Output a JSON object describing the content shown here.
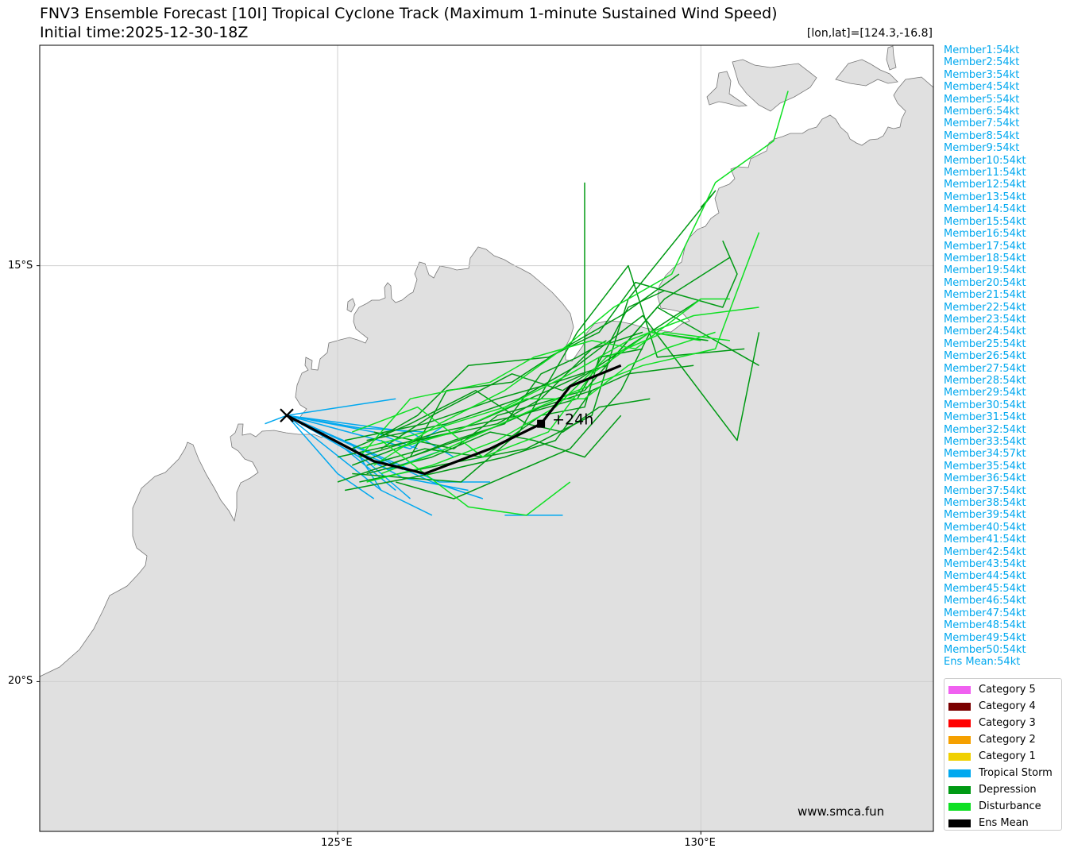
{
  "header": {
    "title": "FNV3 Ensemble Forecast [10I] Tropical Cyclone Track (Maximum 1-minute Sustained Wind Speed)",
    "subtitle": "Initial time:2025-12-30-18Z",
    "position": "[lon,lat]=[124.3,-16.8]"
  },
  "axes": {
    "lon_range": [
      120.9,
      133.2
    ],
    "lat_range": [
      -21.8,
      -12.35
    ],
    "lon_ticks": [
      {
        "value": 125,
        "label": "125°E"
      },
      {
        "value": 130,
        "label": "130°E"
      }
    ],
    "lat_ticks": [
      {
        "value": -15,
        "label": "15°S"
      },
      {
        "value": -20,
        "label": "20°S"
      }
    ],
    "grid": true
  },
  "colors": {
    "land": "#e0e0e0",
    "coast": "#777777",
    "tropical_storm": "#00a8ef",
    "depression": "#009a14",
    "disturbance": "#0fe023",
    "mean": "#000000"
  },
  "members": [
    "Member1:54kt",
    "Member2:54kt",
    "Member3:54kt",
    "Member4:54kt",
    "Member5:54kt",
    "Member6:54kt",
    "Member7:54kt",
    "Member8:54kt",
    "Member9:54kt",
    "Member10:54kt",
    "Member11:54kt",
    "Member12:54kt",
    "Member13:54kt",
    "Member14:54kt",
    "Member15:54kt",
    "Member16:54kt",
    "Member17:54kt",
    "Member18:54kt",
    "Member19:54kt",
    "Member20:54kt",
    "Member21:54kt",
    "Member22:54kt",
    "Member23:54kt",
    "Member24:54kt",
    "Member25:54kt",
    "Member26:54kt",
    "Member27:54kt",
    "Member28:54kt",
    "Member29:54kt",
    "Member30:54kt",
    "Member31:54kt",
    "Member32:54kt",
    "Member33:54kt",
    "Member34:57kt",
    "Member35:54kt",
    "Member36:54kt",
    "Member37:54kt",
    "Member38:54kt",
    "Member39:54kt",
    "Member40:54kt",
    "Member41:54kt",
    "Member42:54kt",
    "Member43:54kt",
    "Member44:54kt",
    "Member45:54kt",
    "Member46:54kt",
    "Member47:54kt",
    "Member48:54kt",
    "Member49:54kt",
    "Member50:54kt",
    "Ens Mean:54kt"
  ],
  "legend": [
    {
      "label": "Category 5",
      "color": "#f060f0"
    },
    {
      "label": "Category 4",
      "color": "#7a0000"
    },
    {
      "label": "Category 3",
      "color": "#ff0000"
    },
    {
      "label": "Category 2",
      "color": "#f5a000"
    },
    {
      "label": "Category 1",
      "color": "#f0d000"
    },
    {
      "label": "Tropical Storm",
      "color": "#00a8ef"
    },
    {
      "label": "Depression",
      "color": "#009a14"
    },
    {
      "label": "Disturbance",
      "color": "#0fe023"
    },
    {
      "label": "Ens Mean",
      "color": "#000000"
    }
  ],
  "start": {
    "lon": 124.3,
    "lat": -16.8
  },
  "mean_track": [
    {
      "lon": 124.3,
      "lat": -16.8
    },
    {
      "lon": 125.5,
      "lat": -17.35
    },
    {
      "lon": 126.2,
      "lat": -17.5
    },
    {
      "lon": 127.1,
      "lat": -17.2
    },
    {
      "lon": 127.8,
      "lat": -16.9
    },
    {
      "lon": 128.2,
      "lat": -16.45
    },
    {
      "lon": 128.9,
      "lat": -16.2
    }
  ],
  "mean_marker": {
    "lon": 127.8,
    "lat": -16.9,
    "label": "+24h"
  },
  "track_groups": [
    {
      "stage": "tropical_storm",
      "tracks": [
        [
          [
            124.3,
            -16.8
          ],
          [
            125.1,
            -17.2
          ],
          [
            125.8,
            -17.7
          ]
        ],
        [
          [
            124.3,
            -16.8
          ],
          [
            125.4,
            -17.35
          ],
          [
            126.0,
            -17.8
          ]
        ],
        [
          [
            124.3,
            -16.8
          ],
          [
            125.6,
            -17.3
          ],
          [
            126.4,
            -17.6
          ],
          [
            127.1,
            -17.6
          ]
        ],
        [
          [
            124.3,
            -16.8
          ],
          [
            125.2,
            -17.15
          ],
          [
            125.6,
            -17.7
          ]
        ],
        [
          [
            124.3,
            -16.8
          ],
          [
            124.0,
            -16.9
          ]
        ],
        [
          [
            124.3,
            -16.8
          ],
          [
            125.8,
            -16.6
          ]
        ],
        [
          [
            124.3,
            -16.8
          ],
          [
            125.5,
            -17.0
          ],
          [
            126.1,
            -17.2
          ]
        ],
        [
          [
            124.3,
            -16.8
          ],
          [
            125.7,
            -17.45
          ],
          [
            126.5,
            -17.2
          ]
        ],
        [
          [
            124.3,
            -16.8
          ],
          [
            125.0,
            -17.5
          ],
          [
            125.5,
            -17.8
          ]
        ],
        [
          [
            124.3,
            -16.8
          ],
          [
            126.0,
            -17.0
          ],
          [
            126.6,
            -17.3
          ]
        ],
        [
          [
            124.3,
            -16.8
          ],
          [
            125.3,
            -17.25
          ],
          [
            125.9,
            -17.45
          ]
        ],
        [
          [
            124.3,
            -16.8
          ],
          [
            125.9,
            -17.55
          ],
          [
            126.8,
            -17.7
          ]
        ],
        [
          [
            124.3,
            -16.8
          ],
          [
            126.3,
            -17.6
          ],
          [
            127.0,
            -17.8
          ]
        ],
        [
          [
            124.3,
            -16.8
          ],
          [
            126.0,
            -17.2
          ],
          [
            126.5,
            -16.9
          ]
        ],
        [
          [
            124.3,
            -16.8
          ],
          [
            125.6,
            -17.7
          ],
          [
            126.3,
            -18.0
          ]
        ],
        [
          [
            124.3,
            -16.8
          ],
          [
            125.3,
            -16.95
          ],
          [
            126.2,
            -17.0
          ]
        ],
        [
          [
            127.3,
            -18.0
          ],
          [
            128.1,
            -18.0
          ]
        ]
      ]
    },
    {
      "stage": "depression",
      "tracks": [
        [
          [
            125.0,
            -17.6
          ],
          [
            126.0,
            -17.3
          ],
          [
            127.0,
            -17.0
          ],
          [
            127.8,
            -16.7
          ],
          [
            128.5,
            -16.5
          ],
          [
            129.0,
            -16.3
          ],
          [
            129.9,
            -16.2
          ]
        ],
        [
          [
            125.2,
            -17.4
          ],
          [
            126.1,
            -17.1
          ],
          [
            127.2,
            -16.9
          ],
          [
            127.8,
            -16.6
          ],
          [
            128.5,
            -16.0
          ],
          [
            129.2,
            -15.8
          ]
        ],
        [
          [
            125.1,
            -17.7
          ],
          [
            126.3,
            -17.5
          ],
          [
            127.3,
            -17.3
          ],
          [
            128.0,
            -17.1
          ],
          [
            128.5,
            -16.5
          ]
        ],
        [
          [
            125.4,
            -17.1
          ],
          [
            126.5,
            -16.9
          ],
          [
            127.5,
            -16.6
          ],
          [
            128.3,
            -16.2
          ],
          [
            129.2,
            -15.6
          ],
          [
            130.5,
            -17.1
          ],
          [
            130.8,
            -15.8
          ]
        ],
        [
          [
            125.0,
            -17.3
          ],
          [
            126.6,
            -17.0
          ],
          [
            127.9,
            -16.5
          ],
          [
            128.4,
            -16.3
          ],
          [
            128.4,
            -14.0
          ]
        ],
        [
          [
            125.3,
            -17.6
          ],
          [
            126.4,
            -17.4
          ],
          [
            127.6,
            -17.2
          ],
          [
            128.5,
            -16.8
          ],
          [
            129.0,
            -15.4
          ],
          [
            130.2,
            -14.1
          ],
          [
            130.0,
            -14.3
          ]
        ],
        [
          [
            125.5,
            -17.0
          ],
          [
            126.6,
            -17.2
          ],
          [
            127.2,
            -16.8
          ],
          [
            128.4,
            -16.5
          ],
          [
            129.4,
            -15.5
          ],
          [
            130.8,
            -16.2
          ]
        ],
        [
          [
            125.2,
            -17.5
          ],
          [
            126.7,
            -17.6
          ],
          [
            127.5,
            -17.0
          ],
          [
            128.3,
            -15.8
          ],
          [
            129.0,
            -15.0
          ],
          [
            129.4,
            -16.1
          ],
          [
            130.6,
            -16.0
          ]
        ],
        [
          [
            125.6,
            -17.2
          ],
          [
            126.3,
            -16.8
          ],
          [
            127.4,
            -16.3
          ],
          [
            128.1,
            -16.5
          ],
          [
            128.6,
            -16.2
          ],
          [
            129.3,
            -15.8
          ],
          [
            130.0,
            -15.4
          ]
        ],
        [
          [
            125.3,
            -17.3
          ],
          [
            126.4,
            -17.0
          ],
          [
            127.5,
            -16.8
          ],
          [
            128.3,
            -16.6
          ],
          [
            128.7,
            -16.0
          ],
          [
            129.0,
            -15.5
          ],
          [
            129.5,
            -15.3
          ]
        ],
        [
          [
            125.4,
            -17.4
          ],
          [
            126.2,
            -17.2
          ],
          [
            127.0,
            -17.3
          ],
          [
            127.8,
            -16.8
          ],
          [
            128.4,
            -16.7
          ],
          [
            128.6,
            -16.1
          ],
          [
            129.2,
            -16.0
          ]
        ],
        [
          [
            125.5,
            -17.1
          ],
          [
            126.1,
            -16.8
          ],
          [
            126.8,
            -16.2
          ],
          [
            127.9,
            -16.1
          ],
          [
            128.6,
            -15.8
          ],
          [
            129.1,
            -15.2
          ],
          [
            130.3,
            -15.5
          ],
          [
            130.5,
            -15.1
          ],
          [
            130.3,
            -14.7
          ]
        ],
        [
          [
            125.2,
            -17.2
          ],
          [
            126.0,
            -16.9
          ],
          [
            126.9,
            -16.5
          ],
          [
            127.6,
            -16.9
          ],
          [
            128.1,
            -17.0
          ],
          [
            128.6,
            -16.7
          ],
          [
            129.3,
            -16.6
          ]
        ],
        [
          [
            125.8,
            -17.6
          ],
          [
            126.6,
            -17.8
          ],
          [
            127.4,
            -17.5
          ],
          [
            128.2,
            -17.2
          ],
          [
            128.9,
            -16.5
          ],
          [
            129.3,
            -15.8
          ],
          [
            130.1,
            -15.9
          ]
        ],
        [
          [
            125.1,
            -17.1
          ],
          [
            126.2,
            -16.9
          ],
          [
            127.2,
            -16.6
          ],
          [
            128.0,
            -16.4
          ],
          [
            128.7,
            -16.2
          ],
          [
            129.5,
            -15.4
          ],
          [
            130.4,
            -14.9
          ]
        ],
        [
          [
            126.0,
            -17.3
          ],
          [
            126.5,
            -16.5
          ],
          [
            127.4,
            -16.4
          ],
          [
            128.1,
            -16.0
          ],
          [
            128.9,
            -15.6
          ],
          [
            129.7,
            -15.1
          ]
        ],
        [
          [
            125.4,
            -17.5
          ],
          [
            126.3,
            -17.3
          ],
          [
            127.1,
            -17.0
          ],
          [
            127.7,
            -17.1
          ],
          [
            128.4,
            -17.3
          ],
          [
            128.9,
            -16.8
          ]
        ],
        [
          [
            125.7,
            -17.4
          ],
          [
            126.6,
            -17.1
          ],
          [
            127.3,
            -16.9
          ],
          [
            127.8,
            -16.3
          ],
          [
            128.3,
            -16.1
          ],
          [
            128.7,
            -15.9
          ]
        ]
      ]
    },
    {
      "stage": "disturbance",
      "tracks": [
        [
          [
            125.3,
            -17.2
          ],
          [
            126.2,
            -17.0
          ],
          [
            127.3,
            -16.7
          ],
          [
            128.2,
            -16.3
          ],
          [
            129.0,
            -15.9
          ],
          [
            129.9,
            -15.6
          ],
          [
            130.8,
            -15.5
          ]
        ],
        [
          [
            125.6,
            -17.5
          ],
          [
            126.5,
            -17.2
          ],
          [
            127.5,
            -16.8
          ],
          [
            128.3,
            -16.5
          ],
          [
            129.2,
            -16.2
          ],
          [
            130.2,
            -16.0
          ],
          [
            130.8,
            -14.6
          ]
        ],
        [
          [
            125.5,
            -17.4
          ],
          [
            126.4,
            -16.9
          ],
          [
            127.3,
            -16.5
          ],
          [
            128.1,
            -16.0
          ],
          [
            128.8,
            -15.5
          ],
          [
            129.6,
            -15.1
          ],
          [
            130.2,
            -14.0
          ],
          [
            131.0,
            -13.5
          ],
          [
            131.2,
            -12.9
          ]
        ],
        [
          [
            125.2,
            -17.0
          ],
          [
            126.1,
            -16.7
          ],
          [
            127.0,
            -17.3
          ],
          [
            127.9,
            -17.0
          ],
          [
            128.5,
            -16.3
          ],
          [
            129.3,
            -15.8
          ],
          [
            130.0,
            -15.9
          ]
        ],
        [
          [
            125.4,
            -17.6
          ],
          [
            126.3,
            -17.4
          ],
          [
            127.2,
            -17.1
          ],
          [
            128.0,
            -16.7
          ],
          [
            128.7,
            -16.1
          ],
          [
            129.5,
            -15.8
          ],
          [
            130.4,
            -15.9
          ]
        ],
        [
          [
            125.3,
            -17.3
          ],
          [
            126.0,
            -16.6
          ],
          [
            127.1,
            -16.4
          ],
          [
            127.7,
            -16.1
          ],
          [
            128.5,
            -15.9
          ],
          [
            129.1,
            -16.0
          ],
          [
            130.0,
            -15.4
          ],
          [
            130.4,
            -15.4
          ]
        ],
        [
          [
            125.8,
            -17.2
          ],
          [
            126.6,
            -17.0
          ],
          [
            127.6,
            -16.6
          ],
          [
            128.4,
            -16.6
          ],
          [
            129.0,
            -16.2
          ],
          [
            129.5,
            -16.0
          ],
          [
            130.2,
            -15.8
          ]
        ],
        [
          [
            125.6,
            -17.1
          ],
          [
            126.8,
            -17.9
          ],
          [
            127.6,
            -18.0
          ],
          [
            128.2,
            -17.6
          ]
        ]
      ]
    }
  ],
  "watermark": "www.smca.fun"
}
